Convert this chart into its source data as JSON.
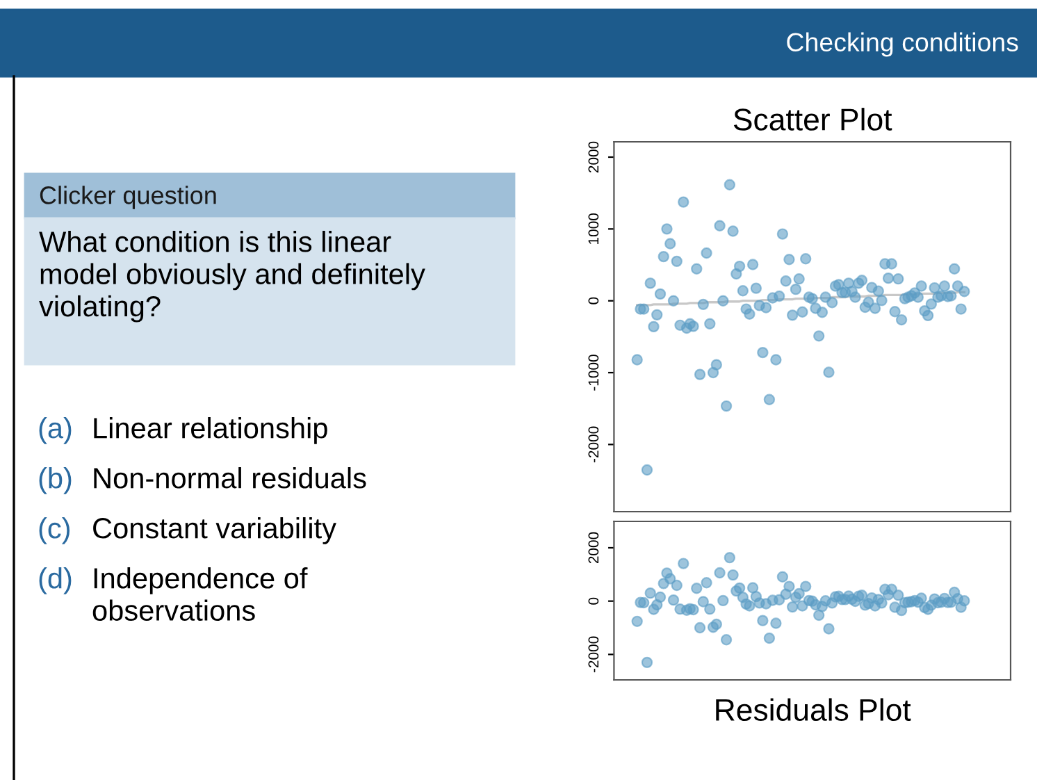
{
  "chart_data": [
    {
      "type": "other",
      "title": "Checking conditions",
      "subtitle": "Clicker question",
      "annotations": [
        "What condition is this linear\nmodel obviously and definitely\nviolating?",
        "(a) Linear relationship",
        "(b) Non-normal residuals",
        "(c) Constant variability",
        "(d) Independence of\nobservations"
      ]
    },
    {
      "type": "scatter",
      "title": "Scatter Plot",
      "categories": [
        null,
        null,
        null,
        null,
        null,
        null,
        null,
        null,
        null,
        null,
        null,
        null,
        null,
        null,
        null,
        null,
        null,
        null,
        null,
        null,
        null,
        null,
        null,
        null,
        null,
        null,
        null,
        null,
        null,
        null,
        null,
        null,
        null,
        null,
        null,
        null,
        null,
        null,
        null,
        null,
        null,
        null,
        null,
        null,
        null,
        null,
        null,
        null,
        null,
        null,
        null,
        null,
        null,
        null,
        null,
        null,
        null,
        null,
        null,
        null,
        null,
        null,
        null,
        null,
        null,
        null,
        null,
        null,
        null,
        null,
        null,
        null,
        null,
        null,
        null,
        null,
        null,
        null,
        null,
        null,
        null,
        null,
        null,
        null,
        null,
        null,
        null,
        null,
        null,
        null,
        null,
        null,
        null,
        null,
        null,
        null,
        null,
        null,
        null,
        null
      ],
      "ylim": [
        -2935,
        2213
      ],
      "yticks": [
        -2000,
        -1000,
        0,
        1000,
        2000
      ],
      "tick_labels": "y",
      "grid": false,
      "marker": "circle",
      "series": [
        {
          "type": "scatter",
          "color": "#5b9cc4",
          "values": [
            -820,
            -115,
            -115,
            -2355,
            245,
            -360,
            -195,
            95,
            615,
            1000,
            795,
            0,
            550,
            -340,
            1375,
            -380,
            -320,
            -355,
            445,
            -1025,
            -50,
            665,
            -320,
            -1000,
            -890,
            1045,
            0,
            -1465,
            1615,
            970,
            375,
            480,
            140,
            -115,
            -185,
            505,
            175,
            -65,
            -720,
            -95,
            -1375,
            40,
            -820,
            65,
            930,
            275,
            575,
            -200,
            160,
            305,
            -155,
            585,
            50,
            30,
            -105,
            -490,
            -160,
            50,
            -995,
            -25,
            205,
            225,
            115,
            115,
            245,
            130,
            50,
            245,
            285,
            -90,
            -20,
            185,
            -105,
            135,
            5,
            515,
            315,
            515,
            -150,
            305,
            -265,
            30,
            50,
            70,
            110,
            50,
            205,
            -140,
            -205,
            -45,
            180,
            50,
            70,
            205,
            60,
            70,
            445,
            205,
            -115,
            130
          ]
        },
        {
          "type": "line",
          "color": "#c8c8c8",
          "marker": "none",
          "line_style": "solid",
          "values": [
            -60,
            -60,
            -60,
            -60,
            -60,
            -50,
            -50,
            -50,
            -50,
            -50,
            -50,
            -40,
            -40,
            -40,
            -40,
            -40,
            -30,
            -30,
            -30,
            -30,
            -30,
            -20,
            -20,
            -20,
            -20,
            -20,
            -20,
            -10,
            -10,
            -10,
            -10,
            -10,
            0,
            0,
            0,
            0,
            0,
            0,
            10,
            10,
            10,
            10,
            10,
            20,
            20,
            20,
            20,
            20,
            30,
            30,
            30,
            30,
            30,
            30,
            40,
            40,
            40,
            40,
            40,
            50,
            50,
            50,
            50,
            50,
            60,
            60,
            60,
            60,
            60,
            60,
            70,
            70,
            70,
            70,
            70,
            80,
            80,
            80,
            80,
            80,
            80,
            90,
            90,
            90,
            90,
            90,
            100,
            100,
            100,
            100,
            100,
            110,
            110,
            110,
            110,
            110,
            110,
            120,
            120,
            120
          ]
        }
      ]
    },
    {
      "type": "scatter",
      "xlabel": "Residuals Plot",
      "categories": [
        null,
        null,
        null,
        null,
        null,
        null,
        null,
        null,
        null,
        null,
        null,
        null,
        null,
        null,
        null,
        null,
        null,
        null,
        null,
        null,
        null,
        null,
        null,
        null,
        null,
        null,
        null,
        null,
        null,
        null,
        null,
        null,
        null,
        null,
        null,
        null,
        null,
        null,
        null,
        null,
        null,
        null,
        null,
        null,
        null,
        null,
        null,
        null,
        null,
        null,
        null,
        null,
        null,
        null,
        null,
        null,
        null,
        null,
        null,
        null,
        null,
        null,
        null,
        null,
        null,
        null,
        null,
        null,
        null,
        null,
        null,
        null,
        null,
        null,
        null,
        null,
        null,
        null,
        null,
        null,
        null,
        null,
        null,
        null,
        null,
        null,
        null,
        null,
        null,
        null,
        null,
        null,
        null,
        null,
        null,
        null,
        null,
        null,
        null,
        null
      ],
      "ylim": [
        -2955,
        2990
      ],
      "yticks": [
        -2000,
        0,
        2000
      ],
      "tick_labels": "y",
      "grid": false,
      "marker": "circle",
      "series": [
        {
          "type": "scatter",
          "color": "#5b9cc4",
          "values": [
            -760,
            -50,
            -60,
            -2300,
            300,
            -310,
            -140,
            150,
            660,
            1050,
            840,
            40,
            590,
            -300,
            1410,
            -340,
            -290,
            -320,
            480,
            -1000,
            -20,
            690,
            -300,
            -980,
            -870,
            1060,
            20,
            -1450,
            1630,
            980,
            380,
            490,
            140,
            -110,
            -180,
            500,
            170,
            -70,
            -730,
            -100,
            -1390,
            30,
            -830,
            50,
            910,
            260,
            550,
            -220,
            140,
            280,
            -180,
            550,
            20,
            0,
            -140,
            -530,
            -200,
            10,
            -1040,
            -70,
            160,
            180,
            60,
            60,
            190,
            70,
            -10,
            180,
            220,
            -150,
            -90,
            120,
            -180,
            60,
            -70,
            440,
            240,
            440,
            -230,
            220,
            -350,
            -60,
            -40,
            -20,
            20,
            -40,
            110,
            -240,
            -310,
            -150,
            80,
            -60,
            -40,
            100,
            -50,
            -40,
            330,
            90,
            -230,
            10
          ]
        }
      ]
    }
  ]
}
